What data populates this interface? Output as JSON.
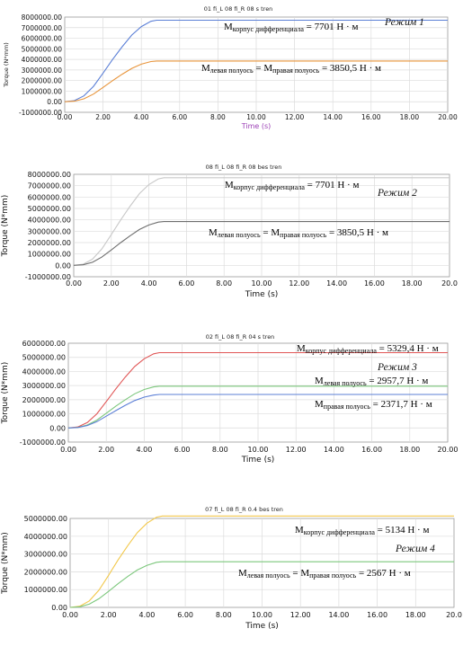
{
  "chart_data": [
    {
      "type": "line",
      "title": "01 fi_L 08 fi_R 08 s tren",
      "xlabel": "Time (s)",
      "ylabel": "Torque (N*mm)",
      "xlim": [
        0,
        20
      ],
      "ylim": [
        -1000000,
        8000000
      ],
      "xticks": [
        "0.00",
        "2.00",
        "4.00",
        "6.00",
        "8.00",
        "10.00",
        "12.00",
        "14.00",
        "16.00",
        "18.00",
        "20.00"
      ],
      "yticks": [
        "-1000000.00",
        "0.00",
        "1000000.00",
        "2000000.00",
        "3000000.00",
        "4000000.00",
        "5000000.00",
        "6000000.00",
        "7000000.00",
        "8000000.00"
      ],
      "grid": true,
      "mode_label": "Режим 1",
      "annotations": [
        "Mкорпус дифференциала = 7701 Н · м",
        "Mлевая полуось = Mправая полуось = 3850,5 Н · м"
      ],
      "series": [
        {
          "color": "#5b7fd6",
          "x": [
            0,
            0.5,
            1,
            1.5,
            2,
            2.5,
            3,
            3.5,
            4,
            4.5,
            4.8,
            5,
            20
          ],
          "values": [
            0,
            100000,
            550000,
            1450000,
            2700000,
            4000000,
            5200000,
            6300000,
            7100000,
            7600000,
            7701000,
            7701000,
            7701000
          ]
        },
        {
          "color": "#e8943a",
          "x": [
            0,
            0.5,
            1,
            1.5,
            2,
            2.5,
            3,
            3.5,
            4,
            4.5,
            4.8,
            5,
            20
          ],
          "values": [
            0,
            50000,
            275000,
            725000,
            1350000,
            2000000,
            2600000,
            3150000,
            3550000,
            3800000,
            3850500,
            3850500,
            3850500
          ]
        }
      ]
    },
    {
      "type": "line",
      "title": "08 fi_L 08 fi_R 08 bes tren",
      "xlabel": "Time (s)",
      "ylabel": "Torque (N*mm)",
      "xlim": [
        0,
        20
      ],
      "ylim": [
        -1000000,
        8000000
      ],
      "xticks": [
        "0.00",
        "2.00",
        "4.00",
        "6.00",
        "8.00",
        "10.00",
        "12.00",
        "14.00",
        "16.00",
        "18.00",
        "20.0"
      ],
      "yticks": [
        "-1000000.00",
        "0.00",
        "1000000.00",
        "2000000.00",
        "3000000.00",
        "4000000.00",
        "5000000.00",
        "6000000.00",
        "7000000.00",
        "8000000.00"
      ],
      "grid": true,
      "mode_label": "Режим 2",
      "annotations": [
        "Mкорпус дифференциала = 7701 Н · м",
        "Mлевая полуось = Mправая полуось = 3850,5 Н · м"
      ],
      "series": [
        {
          "color": "#c8c8c8",
          "x": [
            0,
            0.5,
            1,
            1.5,
            2,
            2.5,
            3,
            3.5,
            4,
            4.5,
            4.8,
            5,
            20
          ],
          "values": [
            0,
            100000,
            550000,
            1450000,
            2700000,
            4000000,
            5200000,
            6300000,
            7100000,
            7600000,
            7701000,
            7701000,
            7701000
          ]
        },
        {
          "color": "#6e6e6e",
          "x": [
            0,
            0.5,
            1,
            1.5,
            2,
            2.5,
            3,
            3.5,
            4,
            4.5,
            4.8,
            5,
            20
          ],
          "values": [
            0,
            50000,
            275000,
            725000,
            1350000,
            2000000,
            2600000,
            3150000,
            3550000,
            3800000,
            3850500,
            3850500,
            3850500
          ]
        }
      ]
    },
    {
      "type": "line",
      "title": "02 fi_L 08 fi_R 04 s tren",
      "xlabel": "Time (s)",
      "ylabel": "Torque (N*mm)",
      "xlim": [
        0,
        20
      ],
      "ylim": [
        -1000000,
        6000000
      ],
      "xticks": [
        "0.00",
        "2.00",
        "4.00",
        "6.00",
        "8.00",
        "10.00",
        "12.00",
        "14.00",
        "16.00",
        "18.00",
        "20.00"
      ],
      "yticks": [
        "-1000000.00",
        "0.00",
        "1000000.00",
        "2000000.00",
        "3000000.00",
        "4000000.00",
        "5000000.00",
        "6000000.00"
      ],
      "grid": true,
      "mode_label": "Режим 3",
      "annotations": [
        "Mкорпус дифференциала = 5329,4 Н · м",
        "Mлевая полуось = 2957,7 Н · м",
        "Mправая полуось = 2371,7 Н · м"
      ],
      "series": [
        {
          "color": "#e05555",
          "x": [
            0,
            0.5,
            1,
            1.5,
            2,
            2.5,
            3,
            3.5,
            4,
            4.5,
            4.8,
            5,
            20
          ],
          "values": [
            0,
            70000,
            380000,
            1000000,
            1870000,
            2770000,
            3600000,
            4350000,
            4900000,
            5250000,
            5329400,
            5329400,
            5329400
          ]
        },
        {
          "color": "#7cc77c",
          "x": [
            0,
            0.5,
            1,
            1.5,
            2,
            2.5,
            3,
            3.5,
            4,
            4.5,
            4.8,
            5,
            20
          ],
          "values": [
            0,
            40000,
            210000,
            555000,
            1040000,
            1540000,
            2000000,
            2420000,
            2720000,
            2910000,
            2957700,
            2957700,
            2957700
          ]
        },
        {
          "color": "#5b7fd6",
          "x": [
            0,
            0.5,
            1,
            1.5,
            2,
            2.5,
            3,
            3.5,
            4,
            4.5,
            4.8,
            5,
            20
          ],
          "values": [
            0,
            30000,
            170000,
            445000,
            830000,
            1230000,
            1600000,
            1940000,
            2180000,
            2330000,
            2371700,
            2371700,
            2371700
          ]
        }
      ]
    },
    {
      "type": "line",
      "title": "07 fi_L 08 fi_R 0.4 bes tren",
      "xlabel": "Time (s)",
      "ylabel": "Torque (N*mm)",
      "xlim": [
        0,
        20
      ],
      "ylim": [
        0,
        5000000
      ],
      "xticks": [
        "0.00",
        "2.00",
        "4.00",
        "6.00",
        "8.00",
        "10.00",
        "12.00",
        "14.00",
        "16.00",
        "18.00",
        "20.0"
      ],
      "yticks": [
        "0.00",
        "1000000.00",
        "2000000.00",
        "3000000.00",
        "4000000.00",
        "5000000.00"
      ],
      "grid": true,
      "mode_label": "Режим 4",
      "annotations": [
        "Mкорпус дифференциала = 5134 Н · м",
        "Mлевая полуось = Mправая полуось = 2567 Н · м"
      ],
      "series": [
        {
          "color": "#f2c84b",
          "x": [
            0,
            0.5,
            1,
            1.5,
            2,
            2.5,
            3,
            3.5,
            4,
            4.5,
            4.8,
            5,
            20
          ],
          "values": [
            0,
            67000,
            365000,
            965000,
            1800000,
            2670000,
            3470000,
            4200000,
            4730000,
            5070000,
            5134000,
            5134000,
            5134000
          ]
        },
        {
          "color": "#7cc77c",
          "x": [
            0,
            0.5,
            1,
            1.5,
            2,
            2.5,
            3,
            3.5,
            4,
            4.5,
            4.8,
            5,
            20
          ],
          "values": [
            0,
            33000,
            183000,
            483000,
            900000,
            1335000,
            1735000,
            2100000,
            2365000,
            2535000,
            2567000,
            2567000,
            2567000
          ]
        }
      ]
    }
  ]
}
